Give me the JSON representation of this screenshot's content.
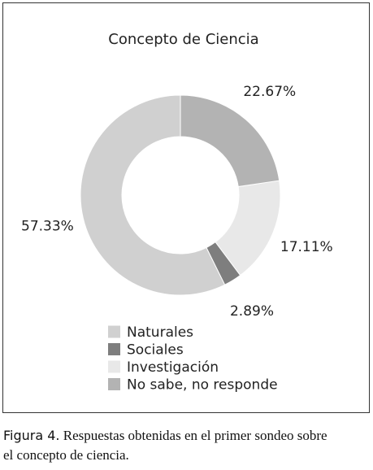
{
  "chart_data": {
    "type": "donut",
    "title": "Concepto de Ciencia",
    "categories": [
      "Naturales",
      "Sociales",
      "Investigación",
      "No sabe, no responde"
    ],
    "values": [
      57.33,
      2.89,
      17.11,
      22.67
    ],
    "value_labels": [
      "57.33%",
      "2.89%",
      "17.11%",
      "22.67%"
    ],
    "colors": [
      "#d0d0d0",
      "#7e7e7e",
      "#e8e8e8",
      "#b3b3b3"
    ]
  },
  "caption": {
    "label": "Figura 4.",
    "text": "Respuestas obtenidas en el primer sondeo sobre el concepto de ciencia."
  }
}
